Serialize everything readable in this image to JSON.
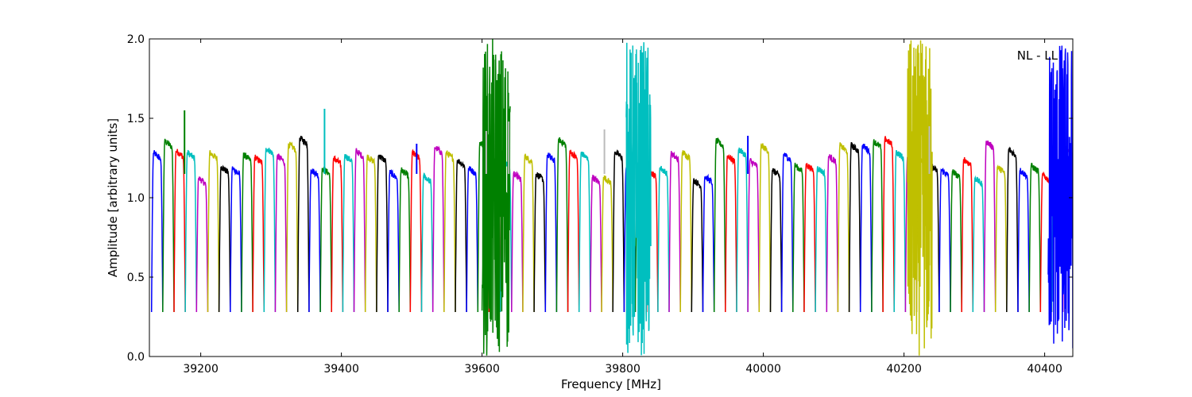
{
  "chart_data": {
    "type": "line",
    "title": "",
    "xlabel": "Frequency [MHz]",
    "ylabel": "Amplitude [arbitrary units]",
    "xlim": [
      39127,
      40440
    ],
    "ylim": [
      0.0,
      2.0
    ],
    "x_ticks": [
      39200,
      39400,
      39600,
      39800,
      40000,
      40200,
      40400
    ],
    "x_tick_labels": [
      "39200",
      "39400",
      "39600",
      "39800",
      "40000",
      "40200",
      "40400"
    ],
    "y_ticks": [
      0.0,
      0.5,
      1.0,
      1.5,
      2.0
    ],
    "y_tick_labels": [
      "0.0",
      "0.5",
      "1.0",
      "1.5",
      "2.0"
    ],
    "annotation": "NL - LL",
    "grid": false,
    "legend": "none",
    "color_cycle": [
      "#0000ff",
      "#008000",
      "#ff0000",
      "#00bfbf",
      "#bf00bf",
      "#bfbf00",
      "#000000"
    ],
    "channel_width_mhz": 16,
    "channel_start_mhz": 39130,
    "channel_count": 82,
    "channel_shape": {
      "edge_low": 0.28,
      "plateau": [
        1.1,
        1.38
      ]
    },
    "noise_features": [
      {
        "x_start": 39600,
        "x_end": 39640,
        "color": "#008000",
        "ymin": 0.0,
        "ymax": 2.0
      },
      {
        "x_start": 39805,
        "x_end": 39840,
        "color": "#00bfbf",
        "ymin": 0.0,
        "ymax": 2.0
      },
      {
        "x_start": 40205,
        "x_end": 40240,
        "color": "#bfbf00",
        "ymin": 0.0,
        "ymax": 2.0
      },
      {
        "x_start": 40405,
        "x_end": 40440,
        "color": "#0000ff",
        "ymin": 0.02,
        "ymax": 2.0
      }
    ],
    "spikes": [
      {
        "x": 39177,
        "y": 1.55,
        "color": "#008000"
      },
      {
        "x": 39376,
        "y": 1.56,
        "color": "#00bfbf"
      },
      {
        "x": 39507,
        "y": 1.34,
        "color": "#0000ff"
      },
      {
        "x": 39606,
        "y": 1.42,
        "color": "#bbbbbb"
      },
      {
        "x": 39638,
        "y": 1.48,
        "color": "#bbbbbb"
      },
      {
        "x": 39774,
        "y": 1.43,
        "color": "#bbbbbb"
      },
      {
        "x": 39978,
        "y": 1.39,
        "color": "#0000ff"
      },
      {
        "x": 40236,
        "y": 1.45,
        "color": "#bbbbbb"
      }
    ]
  }
}
